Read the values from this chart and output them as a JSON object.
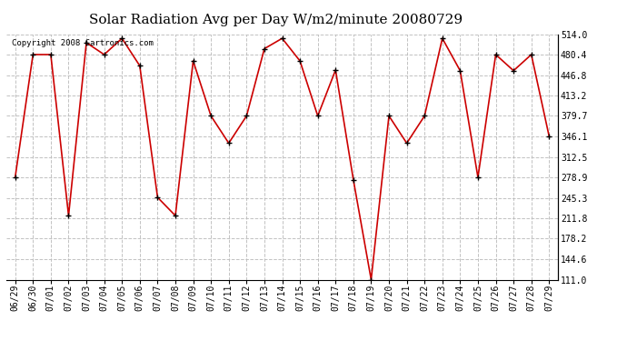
{
  "title": "Solar Radiation Avg per Day W/m2/minute 20080729",
  "copyright_text": "Copyright 2008 Cartronics.com",
  "dates": [
    "06/29",
    "06/30",
    "07/01",
    "07/02",
    "07/03",
    "07/04",
    "07/05",
    "07/06",
    "07/07",
    "07/08",
    "07/09",
    "07/10",
    "07/11",
    "07/12",
    "07/13",
    "07/14",
    "07/15",
    "07/16",
    "07/17",
    "07/18",
    "07/19",
    "07/20",
    "07/21",
    "07/22",
    "07/23",
    "07/24",
    "07/25",
    "07/26",
    "07/27",
    "07/28",
    "07/29"
  ],
  "values": [
    278.9,
    480.4,
    480.4,
    216.0,
    500.0,
    480.4,
    507.0,
    462.0,
    246.0,
    216.0,
    470.0,
    379.7,
    335.0,
    379.7,
    490.0,
    507.0,
    470.0,
    379.7,
    455.0,
    275.0,
    111.0,
    379.7,
    335.0,
    379.7,
    507.0,
    454.0,
    278.9,
    480.4,
    454.0,
    480.4,
    346.1
  ],
  "line_color": "#cc0000",
  "marker_color": "#000000",
  "bg_color": "#ffffff",
  "plot_bg_color": "#ffffff",
  "grid_color": "#bbbbbb",
  "grid_linestyle": "--",
  "ylim": [
    111.0,
    514.0
  ],
  "yticks": [
    111.0,
    144.6,
    178.2,
    211.8,
    245.3,
    278.9,
    312.5,
    346.1,
    379.7,
    413.2,
    446.8,
    480.4,
    514.0
  ],
  "title_fontsize": 11,
  "tick_fontsize": 7,
  "copyright_fontsize": 6.5,
  "fig_width": 6.9,
  "fig_height": 3.75,
  "dpi": 100
}
